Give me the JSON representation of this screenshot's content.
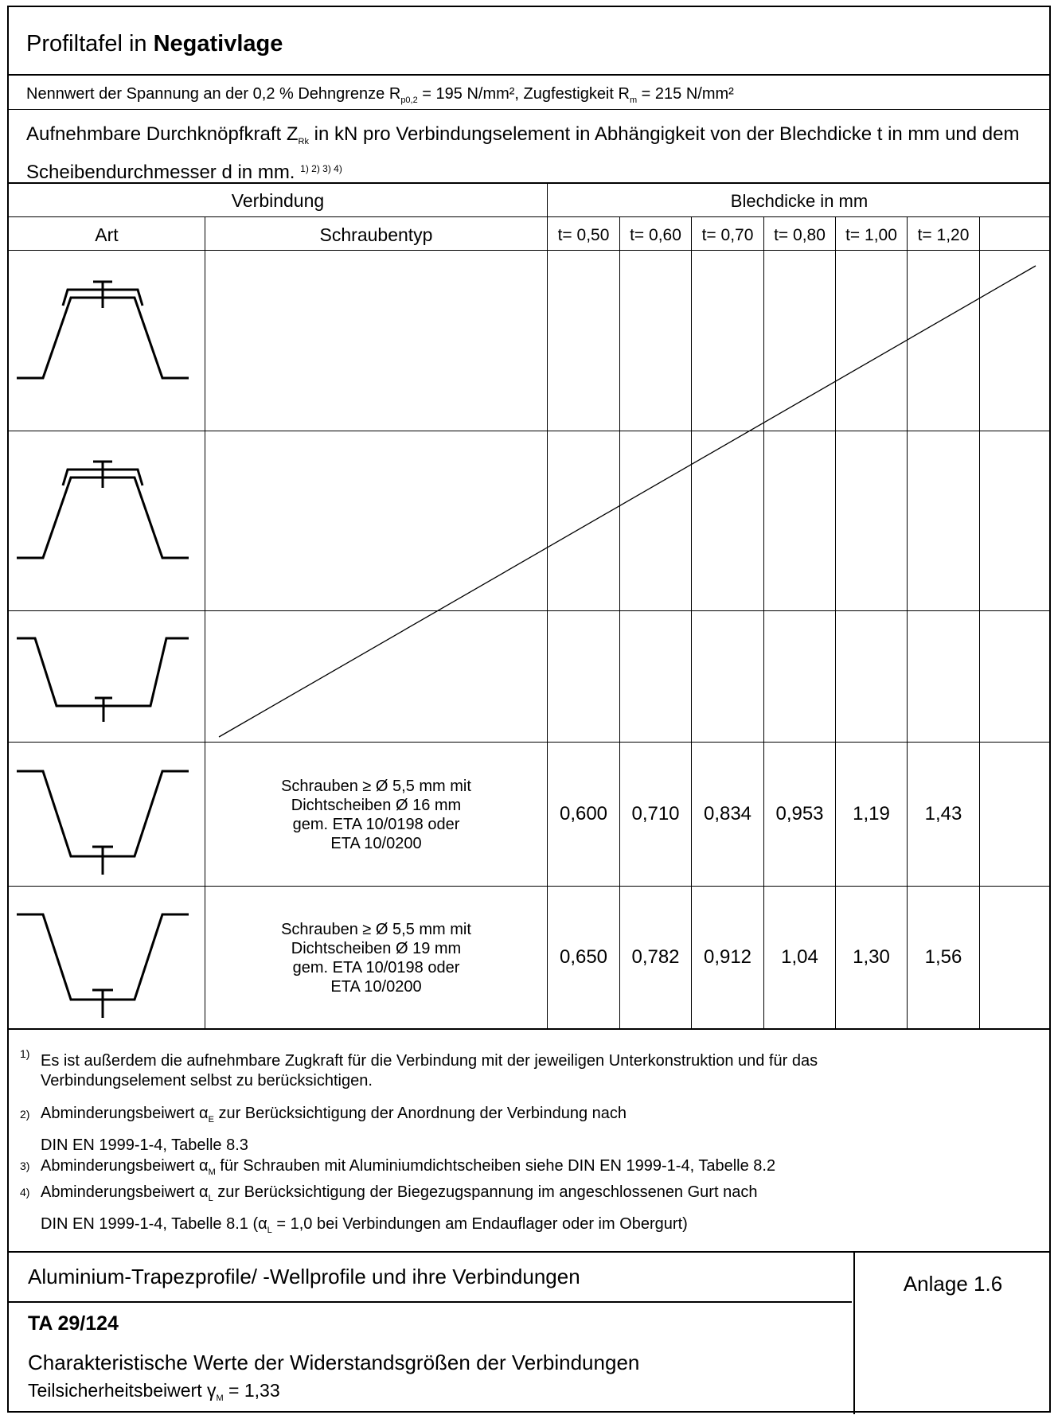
{
  "header": {
    "title_prefix": "Profiltafel in ",
    "title_bold": "Negativlage"
  },
  "nennwert": {
    "text1": "Nennwert der Spannung an der 0,2 % Dehngrenze  R",
    "sub1": "p0,2",
    "text2": " = 195   N/mm², Zugfestigkeit R",
    "sub2": "m",
    "text3": " = 215   N/mm²"
  },
  "description": {
    "text1": "Aufnehmbare Durchknöpfkraft Z",
    "sub": "Rk",
    "text2": " in kN pro Verbindungselement in Abhängigkeit von der Blechdicke t in mm und dem Scheibendurchmesser d in mm.",
    "refs": "1) 2) 3) 4)"
  },
  "table": {
    "group_verbindung": "Verbindung",
    "group_blechdicke": "Blechdicke in mm",
    "col_art": "Art",
    "col_schraubentyp": "Schraubentyp",
    "thickness_cols": [
      "t= 0,50",
      "t= 0,60",
      "t= 0,70",
      "t= 0,80",
      "t= 1,00",
      "t= 1,20"
    ],
    "rows": [
      {
        "profile": "top-flange-with-washer",
        "screw": "",
        "values": [
          "",
          "",
          "",
          "",
          "",
          ""
        ]
      },
      {
        "profile": "top-flange-with-washer",
        "screw": "",
        "values": [
          "",
          "",
          "",
          "",
          "",
          ""
        ]
      },
      {
        "profile": "bottom-flange-screw",
        "screw": "",
        "values": [
          "",
          "",
          "",
          "",
          "",
          ""
        ]
      },
      {
        "profile": "bottom-flange-screw",
        "screw_lines": [
          "Schrauben ≥ Ø 5,5 mm mit",
          "Dichtscheiben Ø 16 mm",
          "gem. ETA 10/0198 oder",
          "ETA 10/0200"
        ],
        "values": [
          "0,600",
          "0,710",
          "0,834",
          "0,953",
          "1,19",
          "1,43"
        ]
      },
      {
        "profile": "bottom-flange-screw",
        "screw_lines": [
          "Schrauben ≥ Ø 5,5 mm mit",
          "Dichtscheiben Ø 19 mm",
          "gem. ETA 10/0198 oder",
          "ETA 10/0200"
        ],
        "values": [
          "0,650",
          "0,782",
          "0,912",
          "1,04",
          "1,30",
          "1,56"
        ]
      }
    ]
  },
  "footnotes": [
    {
      "num": "1)",
      "lines": [
        "Es ist außerdem die aufnehmbare Zugkraft für die Verbindung mit der jeweiligen Unterkonstruktion und für das",
        "Verbindungselement selbst zu berücksichtigen."
      ]
    },
    {
      "num": "2)",
      "pre": "Abminderungsbeiwert α",
      "sub": "E",
      "post": " zur Berücksichtigung der Anordnung der Verbindung nach",
      "line2": "DIN EN 1999-1-4, Tabelle 8.3"
    },
    {
      "num": "3)",
      "pre": "Abminderungsbeiwert α",
      "sub": "M",
      "post": " für Schrauben mit Aluminiumdichtscheiben siehe DIN EN 1999-1-4, Tabelle 8.2"
    },
    {
      "num": "4)",
      "pre": "Abminderungsbeiwert α",
      "sub": "L",
      "post": " zur Berücksichtigung der Biegezugspannung im angeschlossenen Gurt nach",
      "line2_pre": "DIN EN 1999-1-4, Tabelle 8.1 (α",
      "line2_sub": "L",
      "line2_post": " = 1,0 bei Verbindungen am Endauflager oder im Obergurt)"
    }
  ],
  "footer": {
    "product": "Aluminium-Trapezprofile/ -Wellprofile und ihre Verbindungen",
    "anlage": "Anlage 1.6",
    "profile_code": "TA 29/124",
    "subtitle": "Charakteristische Werte der Widerstandsgrößen der Verbindungen",
    "safety_pre": "Teilsicherheitsbeiwert γ",
    "safety_sub": "M",
    "safety_post": " = 1,33"
  }
}
